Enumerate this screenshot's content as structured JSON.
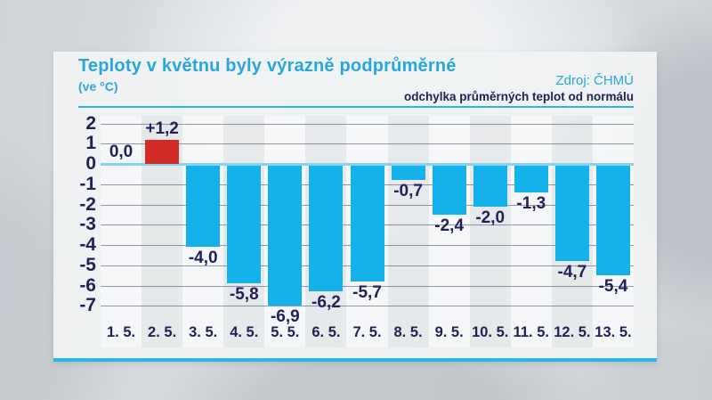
{
  "header": {
    "title": "Teploty v květnu byly výrazně podprůměrné",
    "subtitle": "(ve °C)",
    "source": "Zdroj: ČHMÚ",
    "note": "odchylka průměrných teplot od normálu"
  },
  "colors": {
    "accent_cyan": "#29a7dd",
    "bar_cyan": "#14b1ea",
    "bar_red": "#d32b26",
    "navy_text": "#1f2157",
    "zero_line": "#85d3f0",
    "gridline": "#42476c",
    "panel_bg": "#eff1f2"
  },
  "chart_data": {
    "type": "bar",
    "title": "Teploty v květnu byly výrazně podprůměrné",
    "unit": "°C",
    "note": "odchylka průměrných teplot od normálu",
    "source": "Zdroj: ČHMÚ",
    "categories": [
      "1. 5.",
      "2. 5.",
      "3. 5.",
      "4. 5.",
      "5. 5.",
      "6. 5.",
      "7. 5.",
      "8. 5.",
      "9. 5.",
      "10. 5.",
      "11. 5.",
      "12. 5.",
      "13. 5."
    ],
    "values": [
      0.0,
      1.2,
      -4.0,
      -5.8,
      -6.9,
      -6.2,
      -5.7,
      -0.7,
      -2.4,
      -2.0,
      -1.3,
      -4.7,
      -5.4
    ],
    "value_labels": [
      "0,0",
      "+1,2",
      "-4,0",
      "-5,8",
      "-6,9",
      "-6,2",
      "-5,7",
      "-0,7",
      "-2,4",
      "-2,0",
      "-1,3",
      "-4,7",
      "-5,4"
    ],
    "bar_color_keys": [
      "bar_cyan",
      "bar_red",
      "bar_cyan",
      "bar_cyan",
      "bar_cyan",
      "bar_cyan",
      "bar_cyan",
      "bar_cyan",
      "bar_cyan",
      "bar_cyan",
      "bar_cyan",
      "bar_cyan",
      "bar_cyan"
    ],
    "yticks": [
      2,
      1,
      0,
      -1,
      -2,
      -3,
      -4,
      -5,
      -6,
      -7
    ],
    "ylim": [
      -7,
      2
    ],
    "grid": true,
    "legend": false
  }
}
